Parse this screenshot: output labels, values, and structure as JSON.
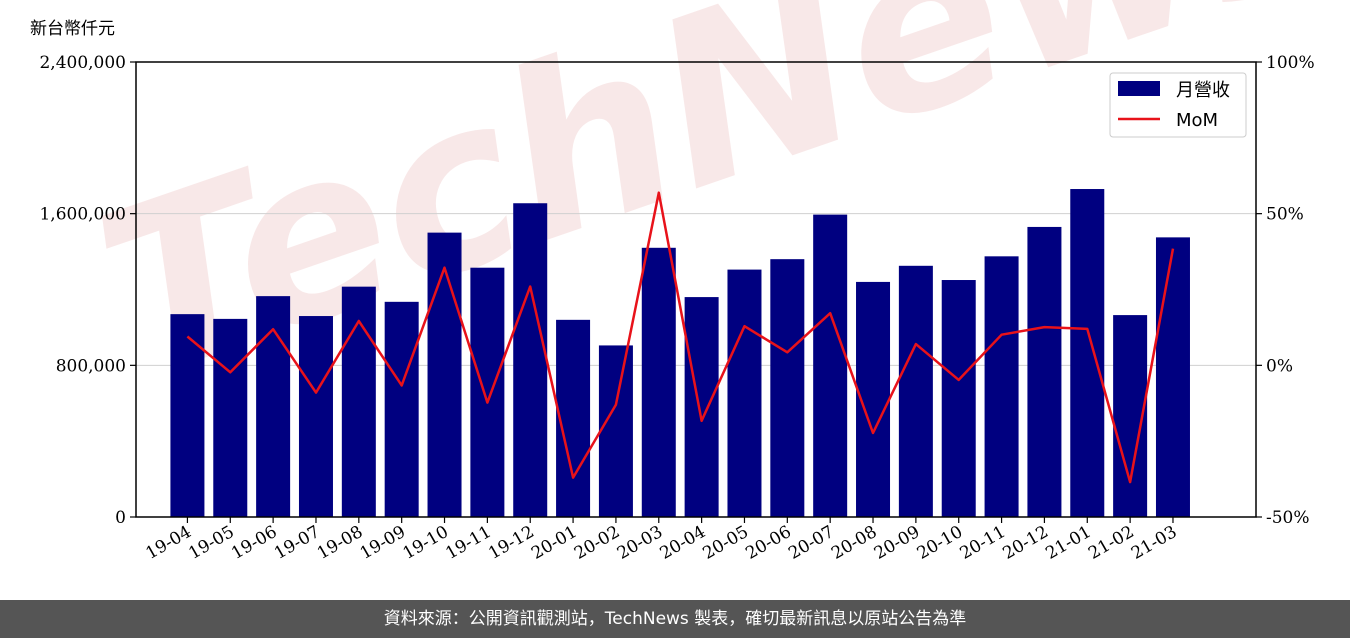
{
  "chart_data": {
    "type": "bar",
    "unit_label": "新台幣仟元",
    "categories": [
      "19-04",
      "19-05",
      "19-06",
      "19-07",
      "19-08",
      "19-09",
      "19-10",
      "19-11",
      "19-12",
      "20-01",
      "20-02",
      "20-03",
      "20-04",
      "20-05",
      "20-06",
      "20-07",
      "20-08",
      "20-09",
      "20-10",
      "20-11",
      "20-12",
      "21-01",
      "21-02",
      "21-03"
    ],
    "series": [
      {
        "name": "月營收",
        "type": "bar",
        "axis": "left",
        "color": "#000080",
        "values": [
          1070000,
          1045000,
          1165000,
          1060000,
          1215000,
          1135000,
          1500000,
          1315000,
          1655000,
          1040000,
          905000,
          1420000,
          1160000,
          1305000,
          1360000,
          1595000,
          1240000,
          1325000,
          1250000,
          1375000,
          1530000,
          1730000,
          1065000,
          1475000
        ]
      },
      {
        "name": "MoM",
        "type": "line",
        "axis": "right",
        "color": "#e8121a",
        "values": [
          9.5,
          -2.3,
          11.9,
          -9.0,
          14.6,
          -6.6,
          32.2,
          -12.3,
          26.0,
          -37.0,
          -13.0,
          56.9,
          -18.3,
          12.9,
          4.3,
          17.2,
          -22.3,
          7.0,
          -4.8,
          10.1,
          12.6,
          12.0,
          -38.5,
          38.5
        ]
      }
    ],
    "y_left": {
      "ylim": [
        0,
        2400000
      ],
      "ticks": [
        "0",
        "800,000",
        "1,600,000",
        "2,400,000"
      ],
      "tick_values": [
        0,
        800000,
        1600000,
        2400000
      ]
    },
    "y_right": {
      "ylim": [
        -50,
        100
      ],
      "ticks": [
        "-50%",
        "0%",
        "50%",
        "100%"
      ],
      "tick_values": [
        -50,
        0,
        50,
        100
      ]
    },
    "grid": true,
    "legend_position": "top-right"
  },
  "watermark": "TechNews",
  "footer": "資料來源：公開資訊觀測站，TechNews 製表，確切最新訊息以原站公告為準"
}
